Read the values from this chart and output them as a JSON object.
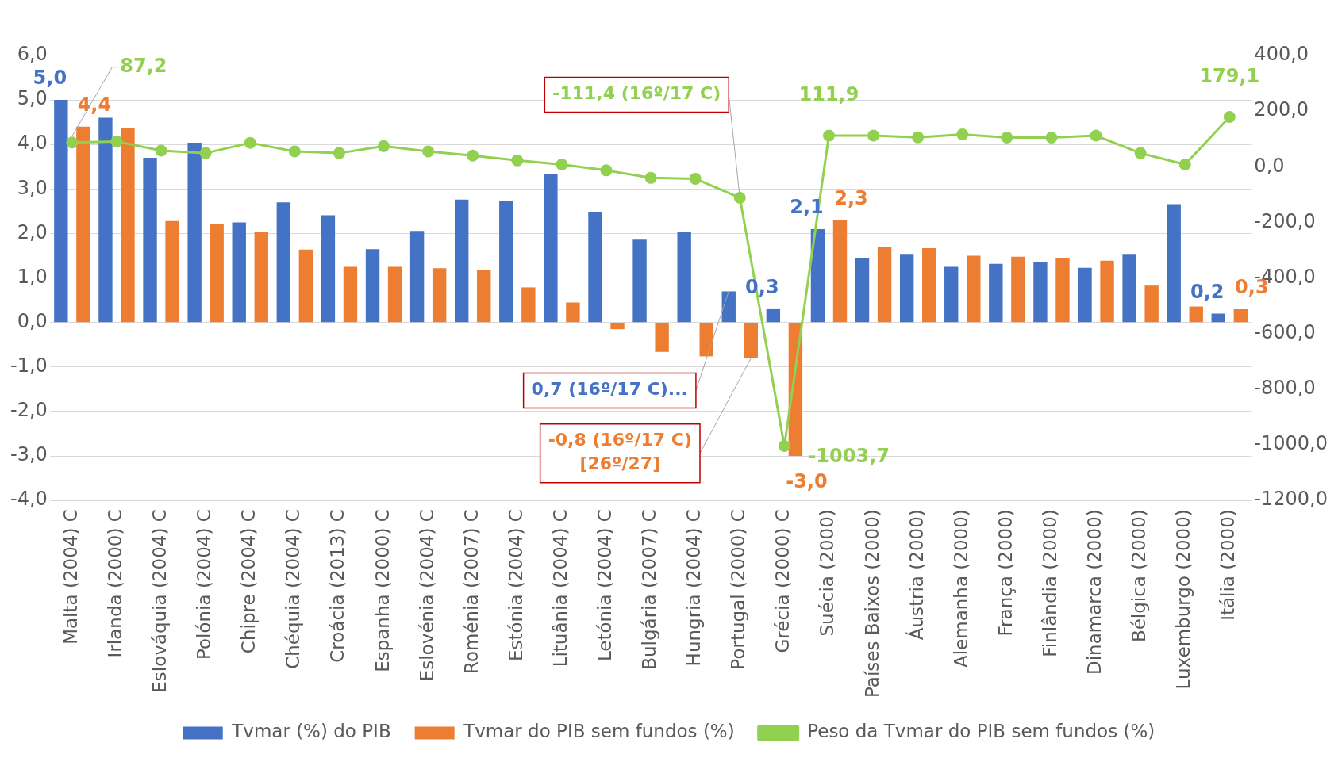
{
  "chart_data": {
    "type": "bar",
    "legend": "bottom",
    "grid": "y",
    "categories": [
      "Malta (2004) C",
      "Irlanda (2000) C",
      "Eslováquia (2004) C",
      "Polónia (2004) C",
      "Chipre (2004) C",
      "Chéquia (2004) C",
      "Croácia (2013) C",
      "Espanha (2000) C",
      "Eslovénia (2004) C",
      "Roménia (2007) C",
      "Estónia (2004) C",
      "Lituânia (2004) C",
      "Letónia (2004) C",
      "Bulgária (2007) C",
      "Hungria (2004) C",
      "Portugal (2000) C",
      "Grécia (2000) C",
      "Suécia (2000)",
      "Países Baixos (2000)",
      "Áustria (2000)",
      "Alemanha (2000)",
      "França (2000)",
      "Finlândia (2000)",
      "Dinamarca (2000)",
      "Bélgica (2000)",
      "Luxemburgo (2000)",
      "Itália (2000)"
    ],
    "series": [
      {
        "name": "Tvmar (%) do PIB",
        "color": "#4472c4",
        "values": [
          5.0,
          4.6,
          3.7,
          4.04,
          2.25,
          2.7,
          2.41,
          1.65,
          2.06,
          2.76,
          2.73,
          3.34,
          2.47,
          1.86,
          2.04,
          0.7,
          0.3,
          2.1,
          1.44,
          1.54,
          1.25,
          1.32,
          1.36,
          1.23,
          1.54,
          2.66,
          0.2
        ],
        "value_labels": [
          "5,0",
          null,
          null,
          null,
          null,
          null,
          null,
          null,
          null,
          null,
          null,
          null,
          null,
          null,
          null,
          "0,7 (16º/17 C)...",
          "0,3",
          "2,1",
          null,
          null,
          null,
          null,
          null,
          null,
          null,
          null,
          "0,2"
        ]
      },
      {
        "name": "Tvmar do PIB sem fundos (%)",
        "color": "#ed7d31",
        "values": [
          4.4,
          4.36,
          2.28,
          2.22,
          2.03,
          1.64,
          1.25,
          1.25,
          1.22,
          1.19,
          0.79,
          0.45,
          -0.15,
          -0.66,
          -0.76,
          -0.8,
          -3.0,
          2.3,
          1.7,
          1.67,
          1.5,
          1.48,
          1.44,
          1.39,
          0.83,
          0.36,
          0.3
        ],
        "value_labels": [
          "4,4",
          null,
          null,
          null,
          null,
          null,
          null,
          null,
          null,
          null,
          null,
          null,
          null,
          null,
          null,
          "-0,8 (16º/17 C) [26º/27]",
          "-3,0",
          "2,3",
          null,
          null,
          null,
          null,
          null,
          null,
          null,
          null,
          "0,3"
        ]
      },
      {
        "name": "Peso da Tvmar do PIB sem fundos (%)",
        "type": "line",
        "axis": "y2",
        "marker": "circle",
        "color": "#92d050",
        "values": [
          87.2,
          91,
          58,
          49,
          86,
          55,
          49,
          74,
          55,
          40,
          23,
          8,
          -13,
          -40,
          -43,
          -111.4,
          -1003.7,
          111.9,
          112,
          106,
          116,
          105,
          105,
          112,
          49,
          8,
          179.1
        ],
        "value_labels": [
          "87,2",
          null,
          null,
          null,
          null,
          null,
          null,
          null,
          null,
          null,
          null,
          null,
          null,
          null,
          null,
          "-111,4 (16º/17 C)",
          "-1003,7",
          "111,9",
          null,
          null,
          null,
          null,
          null,
          null,
          null,
          null,
          "179,1"
        ]
      }
    ],
    "ylim": [
      -4,
      6
    ],
    "yticks": [
      {
        "value": -4,
        "label": "-4,0"
      },
      {
        "value": -3,
        "label": "-3,0"
      },
      {
        "value": -2,
        "label": "-2,0"
      },
      {
        "value": -1,
        "label": "-1,0"
      },
      {
        "value": 0,
        "label": "0,0"
      },
      {
        "value": 1,
        "label": "1,0"
      },
      {
        "value": 2,
        "label": "2,0"
      },
      {
        "value": 3,
        "label": "3,0"
      },
      {
        "value": 4,
        "label": "4,0"
      },
      {
        "value": 5,
        "label": "5,0"
      },
      {
        "value": 6,
        "label": "6,0"
      }
    ],
    "y2lim": [
      -1200,
      400
    ],
    "y2ticks": [
      {
        "value": -1200,
        "label": "-1200,0"
      },
      {
        "value": -1000,
        "label": "-1000,0"
      },
      {
        "value": -800,
        "label": "-800,0"
      },
      {
        "value": -600,
        "label": "-600,0"
      },
      {
        "value": -400,
        "label": "-400,0"
      },
      {
        "value": -200,
        "label": "-200,0"
      },
      {
        "value": 0,
        "label": "0,0"
      },
      {
        "value": 200,
        "label": "200,0"
      },
      {
        "value": 400,
        "label": "400,0"
      }
    ]
  }
}
